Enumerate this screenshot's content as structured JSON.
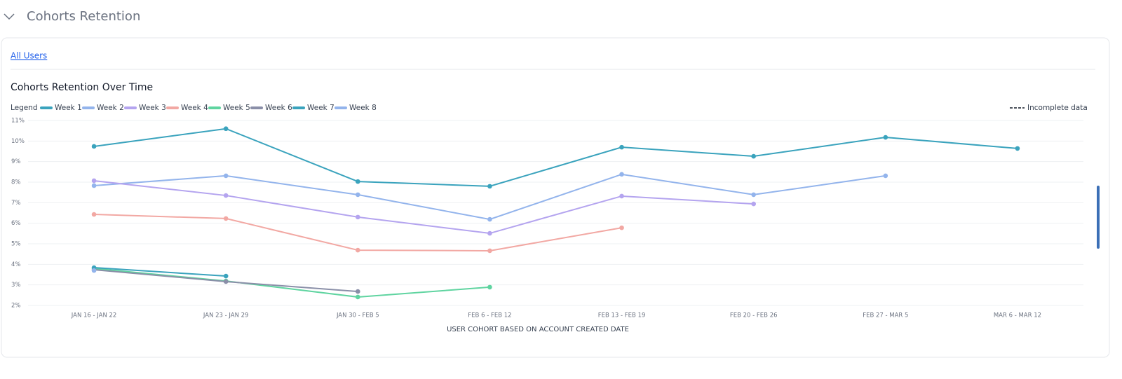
{
  "header": {
    "title": "Cohorts Retention"
  },
  "tab": "All Users",
  "chart_data": {
    "type": "line",
    "title": "Cohorts Retention Over Time",
    "legend_title": "Legend",
    "legend_note": "Incomplete data",
    "x_label": "USER COHORT BASED ON ACCOUNT CREATED DATE",
    "categories": [
      "JAN 16 - JAN 22",
      "JAN 23 - JAN 29",
      "JAN 30 - FEB 5",
      "FEB 6 - FEB 12",
      "FEB 13 - FEB 19",
      "FEB 20 - FEB 26",
      "FEB 27 - MAR 5",
      "MAR 6 - MAR 12"
    ],
    "ylim": [
      2,
      11
    ],
    "yticks": [
      {
        "value": 2,
        "label": "2%"
      },
      {
        "value": 3,
        "label": "3%"
      },
      {
        "value": 4,
        "label": "4%"
      },
      {
        "value": 5,
        "label": "5%"
      },
      {
        "value": 6,
        "label": "6%"
      },
      {
        "value": 7,
        "label": "7%"
      },
      {
        "value": 8,
        "label": "8%"
      },
      {
        "value": 9,
        "label": "9%"
      },
      {
        "value": 10,
        "label": "10%"
      },
      {
        "value": 11,
        "label": "11%"
      }
    ],
    "grid": true,
    "series": [
      {
        "name": "Week 1",
        "color": "#3aa3bd",
        "values": [
          9.74,
          10.6,
          8.03,
          7.8,
          9.7,
          9.26,
          10.18,
          9.64
        ]
      },
      {
        "name": "Week 2",
        "color": "#93b4ec",
        "values": [
          7.83,
          8.31,
          7.39,
          6.19,
          8.38,
          7.39,
          8.31,
          null
        ]
      },
      {
        "name": "Week 3",
        "color": "#b4a4ef",
        "values": [
          8.07,
          7.35,
          6.3,
          5.51,
          7.32,
          6.94,
          null,
          null
        ]
      },
      {
        "name": "Week 4",
        "color": "#f2a8a3",
        "values": [
          6.43,
          6.23,
          4.69,
          4.66,
          5.78,
          null,
          null,
          null
        ]
      },
      {
        "name": "Week 5",
        "color": "#5fd4a0",
        "values": [
          3.8,
          3.19,
          2.41,
          2.89,
          null,
          null,
          null,
          null
        ]
      },
      {
        "name": "Week 6",
        "color": "#8a8fa8",
        "values": [
          3.74,
          3.16,
          2.68,
          null,
          null,
          null,
          null,
          null
        ]
      },
      {
        "name": "Week 7",
        "color": "#3aa3bd",
        "values": [
          3.84,
          3.43,
          null,
          null,
          null,
          null,
          null,
          null
        ]
      },
      {
        "name": "Week 8",
        "color": "#93b4ec",
        "values": [
          3.7,
          null,
          null,
          null,
          null,
          null,
          null,
          null
        ]
      }
    ]
  }
}
